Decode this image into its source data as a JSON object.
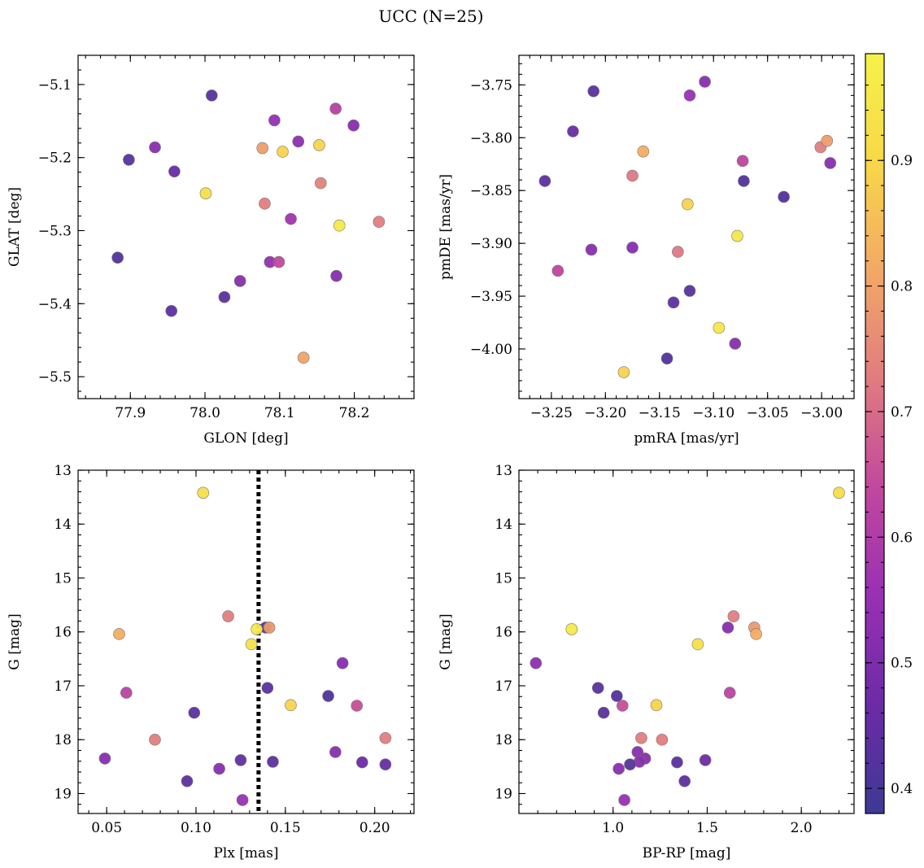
{
  "figure": {
    "title": "UCC (N=25)"
  },
  "chart_data": [
    {
      "type": "scatter",
      "xlabel": "GLON [deg]",
      "ylabel": "GLAT [deg]",
      "xlim": [
        77.83,
        78.28
      ],
      "ylim": [
        -5.53,
        -5.06
      ],
      "y_inverted": false,
      "xticks": [
        77.9,
        78.0,
        78.1,
        78.2
      ],
      "xtick_labels": [
        "77.9",
        "78.0",
        "78.1",
        "78.2"
      ],
      "yticks": [
        -5.1,
        -5.2,
        -5.3,
        -5.4,
        -5.5
      ],
      "ytick_labels": [
        "−5.1",
        "−5.2",
        "−5.3",
        "−5.4",
        "−5.5"
      ],
      "points": [
        {
          "x": 78.009,
          "y": -5.115,
          "c": 0.43
        },
        {
          "x": 77.933,
          "y": -5.186,
          "c": 0.52
        },
        {
          "x": 77.898,
          "y": -5.203,
          "c": 0.43
        },
        {
          "x": 77.959,
          "y": -5.219,
          "c": 0.46
        },
        {
          "x": 78.001,
          "y": -5.249,
          "c": 0.92
        },
        {
          "x": 77.883,
          "y": -5.337,
          "c": 0.42
        },
        {
          "x": 77.955,
          "y": -5.41,
          "c": 0.44
        },
        {
          "x": 78.026,
          "y": -5.391,
          "c": 0.43
        },
        {
          "x": 78.047,
          "y": -5.369,
          "c": 0.52
        },
        {
          "x": 78.087,
          "y": -5.343,
          "c": 0.54
        },
        {
          "x": 78.099,
          "y": -5.343,
          "c": 0.64
        },
        {
          "x": 78.093,
          "y": -5.149,
          "c": 0.54
        },
        {
          "x": 78.125,
          "y": -5.178,
          "c": 0.53
        },
        {
          "x": 78.077,
          "y": -5.187,
          "c": 0.79
        },
        {
          "x": 78.104,
          "y": -5.192,
          "c": 0.89
        },
        {
          "x": 78.08,
          "y": -5.263,
          "c": 0.73
        },
        {
          "x": 78.115,
          "y": -5.284,
          "c": 0.57
        },
        {
          "x": 78.153,
          "y": -5.183,
          "c": 0.89
        },
        {
          "x": 78.155,
          "y": -5.235,
          "c": 0.74
        },
        {
          "x": 78.175,
          "y": -5.133,
          "c": 0.61
        },
        {
          "x": 78.199,
          "y": -5.156,
          "c": 0.52
        },
        {
          "x": 78.18,
          "y": -5.293,
          "c": 0.96
        },
        {
          "x": 78.233,
          "y": -5.288,
          "c": 0.73
        },
        {
          "x": 78.176,
          "y": -5.362,
          "c": 0.52
        },
        {
          "x": 78.132,
          "y": -5.474,
          "c": 0.8
        }
      ]
    },
    {
      "type": "scatter",
      "xlabel": "pmRA [mas/yr]",
      "ylabel": "pmDE [mas/yr]",
      "xlim": [
        -3.28,
        -2.97
      ],
      "ylim": [
        -4.047,
        -3.722
      ],
      "y_inverted": false,
      "xticks": [
        -3.25,
        -3.2,
        -3.15,
        -3.1,
        -3.05,
        -3.0
      ],
      "xtick_labels": [
        "−3.25",
        "−3.20",
        "−3.15",
        "−3.10",
        "−3.05",
        "−3.00"
      ],
      "yticks": [
        -3.75,
        -3.8,
        -3.85,
        -3.9,
        -3.95,
        -4.0
      ],
      "ytick_labels": [
        "−3.75",
        "−3.80",
        "−3.85",
        "−3.90",
        "−3.95",
        "−4.00"
      ],
      "points": [
        {
          "x": -3.211,
          "y": -3.756,
          "c": 0.43
        },
        {
          "x": -3.108,
          "y": -3.747,
          "c": 0.52
        },
        {
          "x": -3.122,
          "y": -3.76,
          "c": 0.55
        },
        {
          "x": -3.23,
          "y": -3.794,
          "c": 0.46
        },
        {
          "x": -3.165,
          "y": -3.813,
          "c": 0.82
        },
        {
          "x": -3.001,
          "y": -3.809,
          "c": 0.73
        },
        {
          "x": -2.995,
          "y": -3.803,
          "c": 0.79
        },
        {
          "x": -2.992,
          "y": -3.824,
          "c": 0.52
        },
        {
          "x": -3.073,
          "y": -3.822,
          "c": 0.63
        },
        {
          "x": -3.256,
          "y": -3.841,
          "c": 0.44
        },
        {
          "x": -3.175,
          "y": -3.836,
          "c": 0.72
        },
        {
          "x": -3.072,
          "y": -3.841,
          "c": 0.42
        },
        {
          "x": -3.035,
          "y": -3.856,
          "c": 0.42
        },
        {
          "x": -3.124,
          "y": -3.863,
          "c": 0.89
        },
        {
          "x": -3.213,
          "y": -3.906,
          "c": 0.52
        },
        {
          "x": -3.175,
          "y": -3.904,
          "c": 0.52
        },
        {
          "x": -3.133,
          "y": -3.908,
          "c": 0.72
        },
        {
          "x": -3.078,
          "y": -3.893,
          "c": 0.95
        },
        {
          "x": -3.244,
          "y": -3.926,
          "c": 0.63
        },
        {
          "x": -3.122,
          "y": -3.945,
          "c": 0.43
        },
        {
          "x": -3.137,
          "y": -3.956,
          "c": 0.44
        },
        {
          "x": -3.095,
          "y": -3.98,
          "c": 0.95
        },
        {
          "x": -3.08,
          "y": -3.995,
          "c": 0.52
        },
        {
          "x": -3.143,
          "y": -4.009,
          "c": 0.42
        },
        {
          "x": -3.183,
          "y": -4.022,
          "c": 0.89
        }
      ]
    },
    {
      "type": "scatter",
      "xlabel": "Plx [mas]",
      "ylabel": "G [mag]",
      "xlim": [
        0.034,
        0.222
      ],
      "ylim": [
        13.0,
        19.37
      ],
      "y_inverted": true,
      "xticks": [
        0.05,
        0.1,
        0.15,
        0.2
      ],
      "xtick_labels": [
        "0.05",
        "0.10",
        "0.15",
        "0.20"
      ],
      "yticks": [
        13,
        14,
        15,
        16,
        17,
        18,
        19
      ],
      "ytick_labels": [
        "13",
        "14",
        "15",
        "16",
        "17",
        "18",
        "19"
      ],
      "vline": 0.135,
      "points": [
        {
          "x": 0.104,
          "y": 13.42,
          "c": 0.92
        },
        {
          "x": 0.118,
          "y": 15.71,
          "c": 0.73
        },
        {
          "x": 0.057,
          "y": 16.04,
          "c": 0.82
        },
        {
          "x": 0.139,
          "y": 15.92,
          "c": 0.44
        },
        {
          "x": 0.141,
          "y": 15.92,
          "c": 0.78
        },
        {
          "x": 0.134,
          "y": 15.95,
          "c": 0.96
        },
        {
          "x": 0.131,
          "y": 16.23,
          "c": 0.93
        },
        {
          "x": 0.182,
          "y": 16.58,
          "c": 0.52
        },
        {
          "x": 0.061,
          "y": 17.13,
          "c": 0.62
        },
        {
          "x": 0.14,
          "y": 17.04,
          "c": 0.43
        },
        {
          "x": 0.174,
          "y": 17.19,
          "c": 0.42
        },
        {
          "x": 0.099,
          "y": 17.5,
          "c": 0.43
        },
        {
          "x": 0.153,
          "y": 17.36,
          "c": 0.89
        },
        {
          "x": 0.19,
          "y": 17.37,
          "c": 0.65
        },
        {
          "x": 0.077,
          "y": 18.0,
          "c": 0.73
        },
        {
          "x": 0.206,
          "y": 17.97,
          "c": 0.73
        },
        {
          "x": 0.178,
          "y": 18.23,
          "c": 0.52
        },
        {
          "x": 0.049,
          "y": 18.35,
          "c": 0.52
        },
        {
          "x": 0.125,
          "y": 18.38,
          "c": 0.45
        },
        {
          "x": 0.143,
          "y": 18.41,
          "c": 0.44
        },
        {
          "x": 0.193,
          "y": 18.42,
          "c": 0.47
        },
        {
          "x": 0.206,
          "y": 18.46,
          "c": 0.46
        },
        {
          "x": 0.113,
          "y": 18.54,
          "c": 0.52
        },
        {
          "x": 0.095,
          "y": 18.77,
          "c": 0.44
        },
        {
          "x": 0.126,
          "y": 19.12,
          "c": 0.55
        }
      ]
    },
    {
      "type": "scatter",
      "xlabel": "BP-RP [mag]",
      "ylabel": "G [mag]",
      "xlim": [
        0.5,
        2.28
      ],
      "ylim": [
        13.0,
        19.37
      ],
      "y_inverted": true,
      "xticks": [
        1.0,
        1.5,
        2.0
      ],
      "xtick_labels": [
        "1.0",
        "1.5",
        "2.0"
      ],
      "yticks": [
        13,
        14,
        15,
        16,
        17,
        18,
        19
      ],
      "ytick_labels": [
        "13",
        "14",
        "15",
        "16",
        "17",
        "18",
        "19"
      ],
      "points": [
        {
          "x": 2.2,
          "y": 13.42,
          "c": 0.92
        },
        {
          "x": 1.64,
          "y": 15.71,
          "c": 0.73
        },
        {
          "x": 1.61,
          "y": 15.92,
          "c": 0.52
        },
        {
          "x": 1.75,
          "y": 15.92,
          "c": 0.78
        },
        {
          "x": 1.76,
          "y": 16.04,
          "c": 0.82
        },
        {
          "x": 0.78,
          "y": 15.95,
          "c": 0.96
        },
        {
          "x": 1.45,
          "y": 16.23,
          "c": 0.93
        },
        {
          "x": 0.59,
          "y": 16.58,
          "c": 0.53
        },
        {
          "x": 0.92,
          "y": 17.04,
          "c": 0.43
        },
        {
          "x": 1.62,
          "y": 17.13,
          "c": 0.62
        },
        {
          "x": 1.02,
          "y": 17.19,
          "c": 0.42
        },
        {
          "x": 1.05,
          "y": 17.37,
          "c": 0.65
        },
        {
          "x": 1.23,
          "y": 17.36,
          "c": 0.89
        },
        {
          "x": 0.95,
          "y": 17.5,
          "c": 0.43
        },
        {
          "x": 1.15,
          "y": 17.97,
          "c": 0.73
        },
        {
          "x": 1.26,
          "y": 18.0,
          "c": 0.73
        },
        {
          "x": 1.13,
          "y": 18.23,
          "c": 0.52
        },
        {
          "x": 1.17,
          "y": 18.35,
          "c": 0.52
        },
        {
          "x": 1.49,
          "y": 18.38,
          "c": 0.47
        },
        {
          "x": 1.14,
          "y": 18.41,
          "c": 0.52
        },
        {
          "x": 1.34,
          "y": 18.42,
          "c": 0.44
        },
        {
          "x": 1.09,
          "y": 18.46,
          "c": 0.43
        },
        {
          "x": 1.03,
          "y": 18.54,
          "c": 0.52
        },
        {
          "x": 1.38,
          "y": 18.77,
          "c": 0.44
        },
        {
          "x": 1.06,
          "y": 19.12,
          "c": 0.55
        }
      ]
    }
  ],
  "colorbar": {
    "colormap": "plasma",
    "range": [
      0.38,
      0.985
    ],
    "ticks": [
      0.4,
      0.5,
      0.6,
      0.7,
      0.8,
      0.9
    ],
    "tick_labels": [
      "0.4",
      "0.5",
      "0.6",
      "0.7",
      "0.8",
      "0.9"
    ],
    "colors": [
      "#3e3994",
      "#6a2ba6",
      "#9a30b4",
      "#c2489d",
      "#e07b80",
      "#f3aa64",
      "#f8d848",
      "#f5f24a"
    ]
  }
}
